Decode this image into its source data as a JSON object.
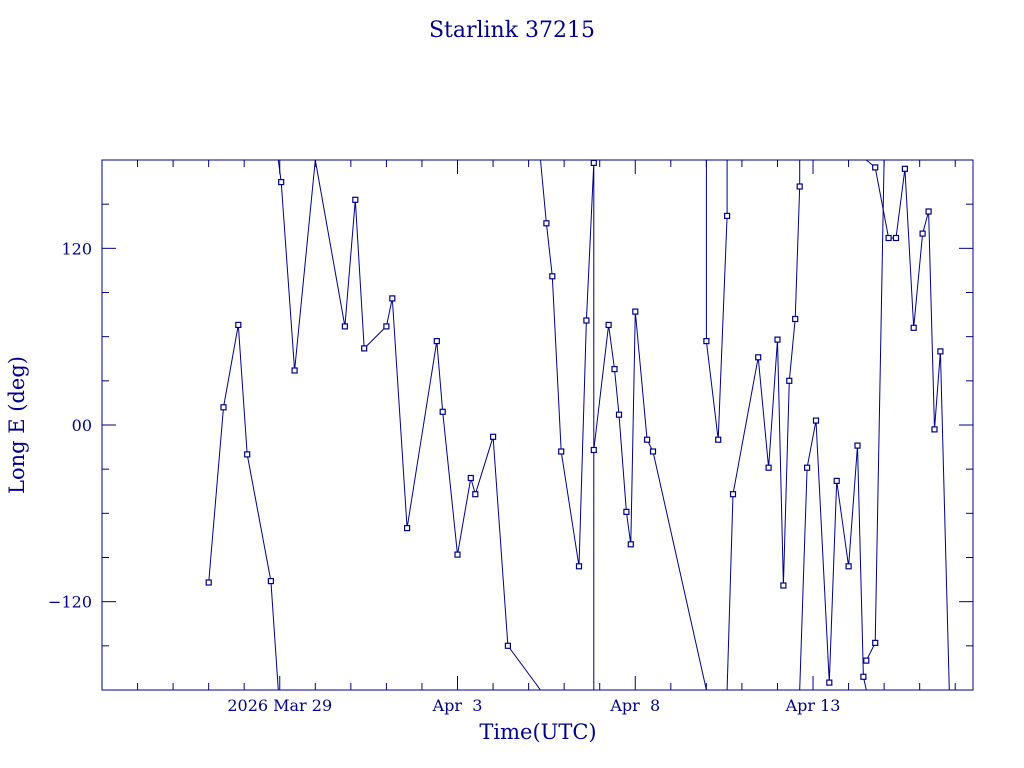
{
  "colors": {
    "ink": "#00008b"
  },
  "chart_data": {
    "type": "line",
    "title": "Starlink 37215",
    "xlabel": "Time(UTC)",
    "ylabel": "Long E (deg)",
    "x_unit": "date (2026, UTC days)",
    "xlim": [
      "2026-03-24T00:00",
      "2026-04-17T12:00"
    ],
    "ylim": [
      -180,
      180
    ],
    "x_ticks": [
      {
        "x": "2026-03-29T00:00",
        "label": "2026 Mar 29"
      },
      {
        "x": "2026-04-03T00:00",
        "label": "Apr  3"
      },
      {
        "x": "2026-04-08T00:00",
        "label": "Apr  8"
      },
      {
        "x": "2026-04-13T00:00",
        "label": "Apr 13"
      }
    ],
    "y_ticks": [
      {
        "y": 120,
        "label": "120"
      },
      {
        "y": 0,
        "label": "00"
      },
      {
        "y": -120,
        "label": "−120"
      }
    ],
    "grid": false,
    "legend": "none",
    "series": [
      {
        "points": [
          [
            "2026-03-27T00:00",
            -107
          ],
          [
            "2026-03-27T10:00",
            12
          ],
          [
            "2026-03-27T20:00",
            68
          ],
          [
            "2026-03-28T02:00",
            -20
          ],
          [
            "2026-03-28T18:00",
            -106
          ],
          [
            "2026-03-28T23:00",
            -180
          ]
        ]
      },
      {
        "points": [
          [
            "2026-03-29T00:00",
            -180
          ],
          [
            "2026-03-29T03:00",
            -180
          ]
        ]
      },
      {
        "points": [
          [
            "2026-03-28T23:00",
            180
          ],
          [
            "2026-03-29T01:00",
            165
          ],
          [
            "2026-03-29T10:00",
            37
          ],
          [
            "2026-03-30T00:00",
            180
          ],
          [
            "2026-03-30T20:00",
            67
          ],
          [
            "2026-03-31T03:00",
            153
          ],
          [
            "2026-03-31T09:00",
            52
          ],
          [
            "2026-04-01T00:00",
            67
          ],
          [
            "2026-04-01T04:00",
            86
          ],
          [
            "2026-04-01T14:00",
            -70
          ],
          [
            "2026-04-02T10:00",
            57
          ],
          [
            "2026-04-02T14:00",
            9
          ],
          [
            "2026-04-03T00:00",
            -88
          ],
          [
            "2026-04-03T09:00",
            -36
          ],
          [
            "2026-04-03T12:00",
            -47
          ],
          [
            "2026-04-04T00:00",
            -8
          ],
          [
            "2026-04-04T10:00",
            -150
          ],
          [
            "2026-04-05T08:00",
            -180
          ]
        ]
      },
      {
        "points": [
          [
            "2026-04-05T08:00",
            180
          ],
          [
            "2026-04-05T12:00",
            137
          ],
          [
            "2026-04-05T16:00",
            101
          ],
          [
            "2026-04-05T22:00",
            -18
          ],
          [
            "2026-04-06T10:00",
            -96
          ],
          [
            "2026-04-06T15:00",
            71
          ],
          [
            "2026-04-06T20:00",
            178
          ],
          [
            "2026-04-06T20:00",
            -180
          ]
        ]
      },
      {
        "points": [
          [
            "2026-04-06T20:00",
            -17
          ],
          [
            "2026-04-07T06:00",
            68
          ],
          [
            "2026-04-07T10:00",
            38
          ],
          [
            "2026-04-07T13:00",
            7
          ],
          [
            "2026-04-07T18:00",
            -59
          ],
          [
            "2026-04-07T21:00",
            -81
          ],
          [
            "2026-04-08T00:00",
            77
          ],
          [
            "2026-04-08T08:00",
            -10
          ],
          [
            "2026-04-08T12:00",
            -18
          ],
          [
            "2026-04-10T00:00",
            -180
          ]
        ]
      },
      {
        "points": [
          [
            "2026-04-10T00:00",
            180
          ],
          [
            "2026-04-10T00:00",
            57
          ],
          [
            "2026-04-10T08:00",
            -10
          ],
          [
            "2026-04-10T14:00",
            142
          ],
          [
            "2026-04-10T14:00",
            180
          ]
        ]
      },
      {
        "points": [
          [
            "2026-04-10T14:00",
            -180
          ],
          [
            "2026-04-10T18:00",
            -47
          ],
          [
            "2026-04-11T11:00",
            46
          ],
          [
            "2026-04-11T18:00",
            -29
          ],
          [
            "2026-04-12T00:00",
            58
          ],
          [
            "2026-04-12T04:00",
            -109
          ],
          [
            "2026-04-12T08:00",
            30
          ],
          [
            "2026-04-12T12:00",
            72
          ],
          [
            "2026-04-12T15:00",
            162
          ],
          [
            "2026-04-12T15:00",
            180
          ]
        ]
      },
      {
        "points": [
          [
            "2026-04-12T15:00",
            -180
          ],
          [
            "2026-04-12T20:00",
            -29
          ],
          [
            "2026-04-13T02:00",
            3
          ],
          [
            "2026-04-13T11:00",
            -175
          ],
          [
            "2026-04-13T16:00",
            -38
          ],
          [
            "2026-04-14T00:00",
            -96
          ],
          [
            "2026-04-14T06:00",
            -14
          ],
          [
            "2026-04-14T10:00",
            -171
          ],
          [
            "2026-04-14T12:00",
            -180
          ]
        ]
      },
      {
        "points": [
          [
            "2026-04-14T12:00",
            -160
          ],
          [
            "2026-04-14T18:00",
            -148
          ],
          [
            "2026-04-15T00:00",
            180
          ]
        ]
      },
      {
        "points": [
          [
            "2026-04-14T12:00",
            180
          ],
          [
            "2026-04-14T18:00",
            175
          ],
          [
            "2026-04-15T03:00",
            127
          ],
          [
            "2026-04-15T08:00",
            127
          ],
          [
            "2026-04-15T14:00",
            174
          ],
          [
            "2026-04-15T20:00",
            66
          ],
          [
            "2026-04-16T02:00",
            130
          ],
          [
            "2026-04-16T06:00",
            145
          ],
          [
            "2026-04-16T10:00",
            -3
          ],
          [
            "2026-04-16T14:00",
            50
          ],
          [
            "2026-04-16T20:00",
            -180
          ]
        ]
      }
    ]
  }
}
